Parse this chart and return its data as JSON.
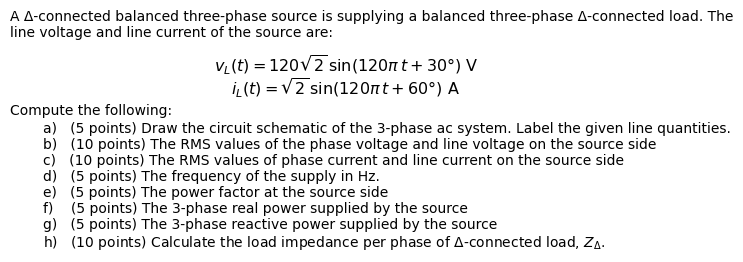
{
  "bg_color": "#ffffff",
  "text_color": "#000000",
  "font_size_body": 10.0,
  "font_size_eq": 11.5,
  "header_line1": "A Δ-connected balanced three-phase source is supplying a balanced three-phase Δ-connected load. The",
  "header_line2": "line voltage and line current of the source are:",
  "eq1_left": "$v_L(t)$",
  "eq1_mid": "= 120",
  "eq1_sqrt": "$\\sqrt{2}$",
  "eq1_right": "sin(120π t + 30°)  V",
  "eq2_left": "$i_L(t)$",
  "eq2_mid": "=",
  "eq2_sqrt": "$\\sqrt{2}$",
  "eq2_right": "sin(120π t + 60°)  A",
  "compute_label": "Compute the following:",
  "items_a": "a)   (5 points) Draw the circuit schematic of the 3-phase ac system. Label the given line quantities.",
  "items_b": "b)   (10 points) The RMS values of the phase voltage and line voltage on the source side",
  "items_c": "c)   (10 points) The RMS values of phase current and line current on the source side",
  "items_d": "d)   (5 points) The frequency of the supply in Hz.",
  "items_e": "e)   (5 points) The power factor at the source side",
  "items_f": "f)    (5 points) The 3-phase real power supplied by the source",
  "items_g": "g)   (5 points) The 3-phase reactive power supplied by the source",
  "items_h_prefix": "h)   (10 points) Calculate the load impedance per phase of Δ-connected load, ",
  "items_h_suffix": "."
}
